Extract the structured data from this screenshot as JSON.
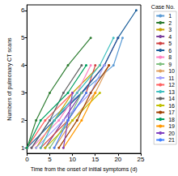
{
  "chart_data": {
    "type": "line",
    "x_label": "Time from the onset of initial symptoms (d)",
    "y_label": "Numbers of pulmonary CT scans",
    "legend_title": "Case No.",
    "legend": "right",
    "marker": "circle",
    "xlim": [
      0,
      25
    ],
    "xticks": [
      0,
      5,
      10,
      15,
      20,
      25
    ],
    "ylim": [
      0.8,
      6.2
    ],
    "yticks": [
      1,
      2,
      3,
      4,
      5,
      6
    ],
    "grid": false,
    "series": [
      {
        "name": "1",
        "color": "#5b9bd5",
        "values": [
          [
            1,
            1
          ],
          [
            5,
            2
          ],
          [
            12,
            3
          ],
          [
            19,
            4
          ],
          [
            21,
            5
          ]
        ]
      },
      {
        "name": "2",
        "color": "#2e7d32",
        "values": [
          [
            0,
            1
          ],
          [
            2,
            2
          ],
          [
            5,
            3
          ],
          [
            9,
            4
          ],
          [
            14,
            5
          ]
        ]
      },
      {
        "name": "3",
        "color": "#c7a100",
        "values": [
          [
            2,
            1
          ],
          [
            6,
            2
          ],
          [
            10,
            3
          ],
          [
            16,
            4
          ]
        ]
      },
      {
        "name": "4",
        "color": "#7b3f9e",
        "values": [
          [
            4,
            1
          ],
          [
            8,
            2
          ],
          [
            12,
            3
          ],
          [
            17,
            4
          ],
          [
            20,
            5
          ]
        ]
      },
      {
        "name": "5",
        "color": "#d04040",
        "values": [
          [
            3,
            1
          ],
          [
            9,
            2
          ],
          [
            13,
            3
          ],
          [
            15,
            4
          ]
        ]
      },
      {
        "name": "6",
        "color": "#1a5e9a",
        "values": [
          [
            0,
            1
          ],
          [
            6,
            2
          ],
          [
            12,
            3
          ],
          [
            17,
            4
          ],
          [
            20,
            5
          ],
          [
            24,
            6
          ]
        ]
      },
      {
        "name": "8",
        "color": "#ff80c0",
        "values": [
          [
            1,
            1
          ],
          [
            7,
            2
          ],
          [
            11,
            3
          ],
          [
            14,
            4
          ]
        ]
      },
      {
        "name": "9",
        "color": "#80c080",
        "values": [
          [
            5,
            1
          ],
          [
            9,
            2
          ],
          [
            12,
            3
          ]
        ]
      },
      {
        "name": "10",
        "color": "#e0a060",
        "values": [
          [
            6,
            1
          ],
          [
            10,
            2
          ],
          [
            15,
            3
          ],
          [
            18,
            4
          ]
        ]
      },
      {
        "name": "11",
        "color": "#a0a0ff",
        "values": [
          [
            2,
            1
          ],
          [
            8,
            2
          ],
          [
            14,
            3
          ],
          [
            17,
            4
          ]
        ]
      },
      {
        "name": "12",
        "color": "#ff6060",
        "values": [
          [
            0,
            1
          ],
          [
            4,
            2
          ],
          [
            10,
            3
          ]
        ]
      },
      {
        "name": "13",
        "color": "#40c0c0",
        "values": [
          [
            3,
            1
          ],
          [
            6,
            2
          ],
          [
            11,
            3
          ],
          [
            16,
            4
          ],
          [
            19,
            5
          ]
        ]
      },
      {
        "name": "14",
        "color": "#606060",
        "values": [
          [
            1,
            1
          ],
          [
            5,
            2
          ],
          [
            8,
            3
          ],
          [
            12,
            4
          ]
        ]
      },
      {
        "name": "16",
        "color": "#c0c000",
        "values": [
          [
            4,
            1
          ],
          [
            10,
            2
          ],
          [
            16,
            3
          ]
        ]
      },
      {
        "name": "17",
        "color": "#a04000",
        "values": [
          [
            7,
            1
          ],
          [
            11,
            2
          ],
          [
            14,
            3
          ],
          [
            18,
            4
          ]
        ]
      },
      {
        "name": "18",
        "color": "#00a060",
        "values": [
          [
            0,
            1
          ],
          [
            3,
            2
          ],
          [
            9,
            3
          ],
          [
            13,
            4
          ]
        ]
      },
      {
        "name": "19",
        "color": "#ff9900",
        "values": [
          [
            8,
            1
          ],
          [
            12,
            2
          ],
          [
            15,
            3
          ]
        ]
      },
      {
        "name": "20",
        "color": "#8040c0",
        "values": [
          [
            8,
            1
          ],
          [
            9,
            2
          ],
          [
            10,
            3
          ]
        ]
      },
      {
        "name": "21",
        "color": "#4080ff",
        "values": [
          [
            6,
            1
          ],
          [
            9,
            2
          ],
          [
            13,
            3
          ]
        ]
      }
    ]
  }
}
